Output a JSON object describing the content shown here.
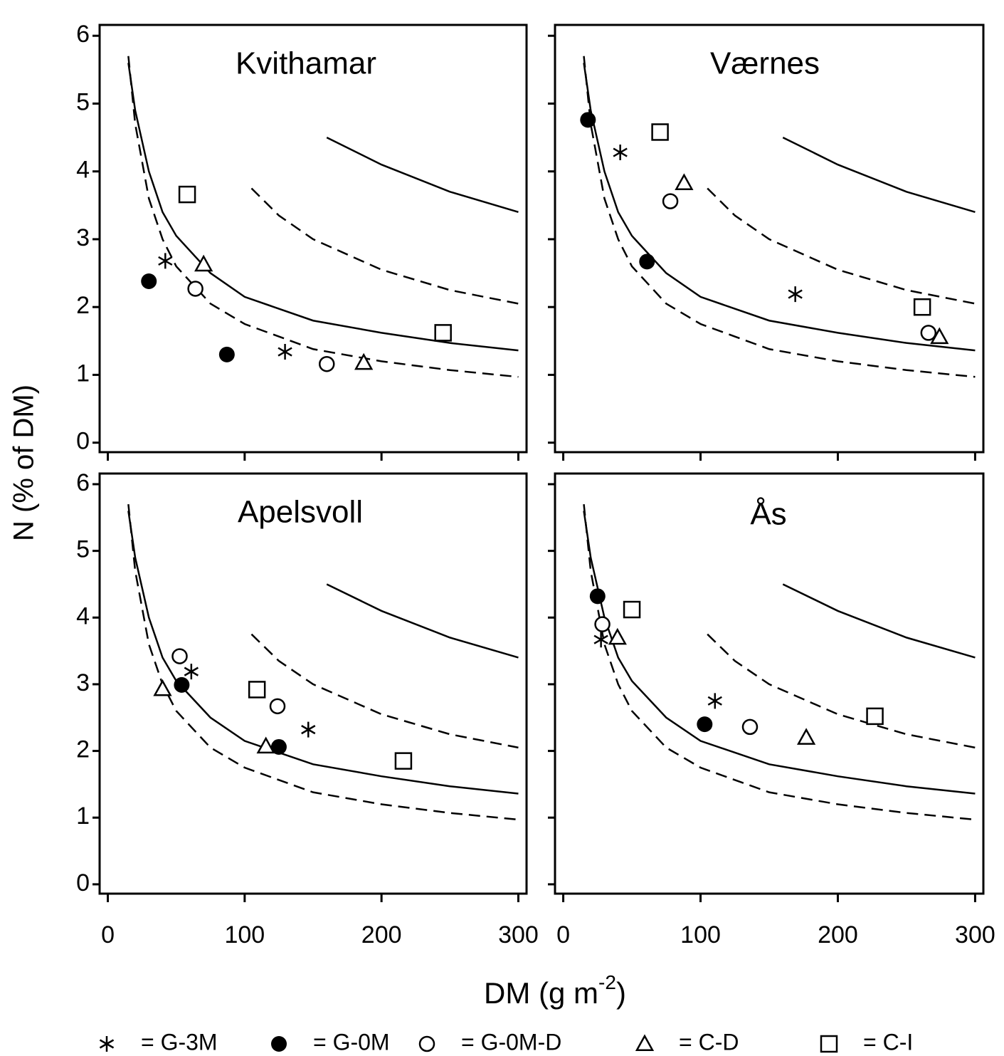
{
  "chart_data": [
    {
      "type": "scatter",
      "title": "Kvithamar",
      "xlim": [
        -6,
        306
      ],
      "ylim": [
        -0.14,
        6.16
      ],
      "xticks": [
        0,
        100,
        200,
        300
      ],
      "yticks": [
        0,
        1,
        2,
        3,
        4,
        5,
        6
      ],
      "series": [
        {
          "marker": "asterisk",
          "color": "#000000",
          "x": [
            42,
            129.5
          ],
          "values": [
            2.68,
            1.34
          ]
        },
        {
          "marker": "filled-circle",
          "color": "#000000",
          "x": [
            30,
            87
          ],
          "values": [
            2.38,
            1.3
          ]
        },
        {
          "marker": "open-circle",
          "color": "#000000",
          "x": [
            64,
            160
          ],
          "values": [
            2.27,
            1.16
          ]
        },
        {
          "marker": "triangle",
          "color": "#000000",
          "x": [
            70,
            187
          ],
          "values": [
            2.63,
            1.18
          ]
        },
        {
          "marker": "square",
          "color": "#000000",
          "x": [
            58,
            245
          ],
          "values": [
            3.66,
            1.62
          ]
        }
      ]
    },
    {
      "type": "scatter",
      "title": "Værnes",
      "xlim": [
        -6,
        306
      ],
      "ylim": [
        -0.14,
        6.16
      ],
      "xticks": [
        0,
        100,
        200,
        300
      ],
      "yticks": [
        0,
        1,
        2,
        3,
        4,
        5,
        6
      ],
      "series": [
        {
          "marker": "asterisk",
          "color": "#000000",
          "x": [
            41.5,
            169
          ],
          "values": [
            4.28,
            2.19
          ]
        },
        {
          "marker": "filled-circle",
          "color": "#000000",
          "x": [
            18,
            61
          ],
          "values": [
            4.76,
            2.67
          ]
        },
        {
          "marker": "open-circle",
          "color": "#000000",
          "x": [
            78,
            266
          ],
          "values": [
            3.56,
            1.62
          ]
        },
        {
          "marker": "triangle",
          "color": "#000000",
          "x": [
            88,
            274
          ],
          "values": [
            3.83,
            1.56
          ]
        },
        {
          "marker": "square",
          "color": "#000000",
          "x": [
            70.5,
            261.5
          ],
          "values": [
            4.58,
            2.0
          ]
        }
      ]
    },
    {
      "type": "scatter",
      "title": "Apelsvoll",
      "xlim": [
        -6,
        306
      ],
      "ylim": [
        -0.14,
        6.16
      ],
      "xticks": [
        0,
        100,
        200,
        300
      ],
      "yticks": [
        0,
        1,
        2,
        3,
        4,
        5,
        6
      ],
      "series": [
        {
          "marker": "asterisk",
          "color": "#000000",
          "x": [
            61,
            146.5
          ],
          "values": [
            3.19,
            2.32
          ]
        },
        {
          "marker": "filled-circle",
          "color": "#000000",
          "x": [
            54,
            125
          ],
          "values": [
            2.99,
            2.06
          ]
        },
        {
          "marker": "open-circle",
          "color": "#000000",
          "x": [
            52.5,
            124
          ],
          "values": [
            3.42,
            2.67
          ]
        },
        {
          "marker": "triangle",
          "color": "#000000",
          "x": [
            40,
            115.5
          ],
          "values": [
            2.93,
            2.07
          ]
        },
        {
          "marker": "square",
          "color": "#000000",
          "x": [
            109,
            216
          ],
          "values": [
            2.92,
            1.85
          ]
        }
      ]
    },
    {
      "type": "scatter",
      "title": "Ås",
      "xlim": [
        -6,
        306
      ],
      "ylim": [
        -0.14,
        6.16
      ],
      "xticks": [
        0,
        100,
        200,
        300
      ],
      "yticks": [
        0,
        1,
        2,
        3,
        4,
        5,
        6
      ],
      "series": [
        {
          "marker": "asterisk",
          "color": "#000000",
          "x": [
            27.5,
            110.5
          ],
          "values": [
            3.67,
            2.75
          ]
        },
        {
          "marker": "filled-circle",
          "color": "#000000",
          "x": [
            25,
            103
          ],
          "values": [
            4.32,
            2.4
          ]
        },
        {
          "marker": "open-circle",
          "color": "#000000",
          "x": [
            28.5,
            136
          ],
          "values": [
            3.9,
            2.36
          ]
        },
        {
          "marker": "triangle",
          "color": "#000000",
          "x": [
            39.5,
            177
          ],
          "values": [
            3.7,
            2.2
          ]
        },
        {
          "marker": "square",
          "color": "#000000",
          "x": [
            50,
            227
          ],
          "values": [
            4.12,
            2.52
          ]
        }
      ]
    }
  ],
  "reference_curves": [
    {
      "dashed": false,
      "x": [
        15,
        20,
        30,
        40,
        50,
        75,
        100,
        150,
        200,
        250,
        300
      ],
      "values": [
        5.6,
        4.9,
        4.0,
        3.4,
        3.05,
        2.5,
        2.15,
        1.8,
        1.62,
        1.47,
        1.36
      ]
    },
    {
      "dashed": true,
      "x": [
        15,
        20,
        30,
        40,
        50,
        75,
        100,
        150,
        200,
        250,
        300
      ],
      "values": [
        5.7,
        4.7,
        3.6,
        3.0,
        2.6,
        2.05,
        1.75,
        1.38,
        1.2,
        1.07,
        0.97
      ]
    },
    {
      "dashed": true,
      "x": [
        105,
        125,
        150,
        200,
        250,
        300
      ],
      "values": [
        3.75,
        3.35,
        3.0,
        2.55,
        2.25,
        2.05
      ]
    },
    {
      "dashed": false,
      "x": [
        160,
        200,
        250,
        300
      ],
      "values": [
        4.5,
        4.1,
        3.7,
        3.4
      ]
    }
  ],
  "y_label": "N (% of DM)",
  "x_label": [
    "DM (g m",
    "-2",
    ")"
  ],
  "legend": [
    {
      "marker": "asterisk",
      "label": "= G-3M"
    },
    {
      "marker": "filled-circle",
      "label": "= G-0M"
    },
    {
      "marker": "open-circle",
      "label": "= G-0M-D"
    },
    {
      "marker": "triangle",
      "label": "= C-D"
    },
    {
      "marker": "square",
      "label": "= C-I"
    }
  ]
}
